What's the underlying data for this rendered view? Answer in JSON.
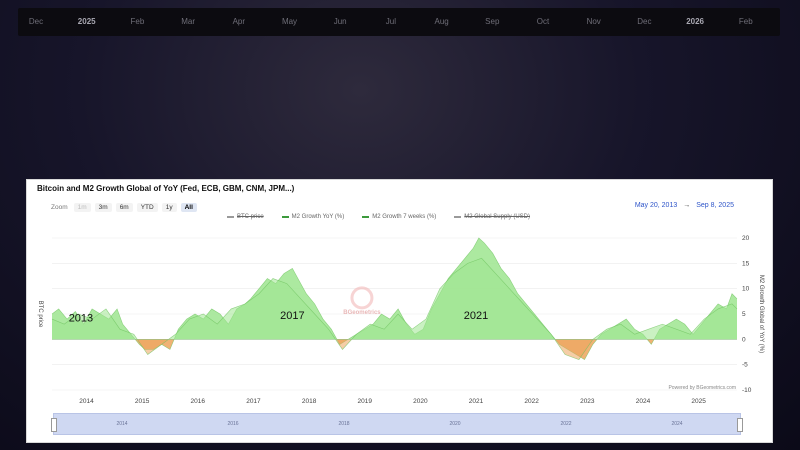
{
  "timeline": {
    "labels": [
      {
        "text": "Dec",
        "year": false
      },
      {
        "text": "2025",
        "year": true
      },
      {
        "text": "Feb",
        "year": false
      },
      {
        "text": "Mar",
        "year": false
      },
      {
        "text": "Apr",
        "year": false
      },
      {
        "text": "May",
        "year": false
      },
      {
        "text": "Jun",
        "year": false
      },
      {
        "text": "Jul",
        "year": false
      },
      {
        "text": "Aug",
        "year": false
      },
      {
        "text": "Sep",
        "year": false
      },
      {
        "text": "Oct",
        "year": false
      },
      {
        "text": "Nov",
        "year": false
      },
      {
        "text": "Dec",
        "year": false
      },
      {
        "text": "2026",
        "year": true
      },
      {
        "text": "Feb",
        "year": false
      }
    ]
  },
  "chart": {
    "title": "Bitcoin and M2 Growth Global of YoY (Fed, ECB, GBM, CNM, JPM...)",
    "zoom_label": "Zoom",
    "zoom_buttons": [
      {
        "label": "1m",
        "state": "disabled"
      },
      {
        "label": "3m",
        "state": "normal"
      },
      {
        "label": "6m",
        "state": "normal"
      },
      {
        "label": "YTD",
        "state": "normal"
      },
      {
        "label": "1y",
        "state": "normal"
      },
      {
        "label": "All",
        "state": "active"
      }
    ],
    "range_start": "May 20, 2013",
    "range_arrow": "→",
    "range_end": "Sep 8, 2025",
    "legend": [
      {
        "label": "BTC price",
        "color": "#9a9a9a",
        "struck": true
      },
      {
        "label": "M2 Growth YoY (%)",
        "color": "#3c9a3c",
        "struck": false
      },
      {
        "label": "M2 Growth 7 weeks (%)",
        "color": "#3c9a3c",
        "struck": false
      },
      {
        "label": "M2 Global Supply (USD)",
        "color": "#9a9a9a",
        "struck": true
      }
    ],
    "left_axis_label": "BTC price",
    "right_axis_label": "M2 Growth Global of YoY (%)",
    "credits": "Powered by BGeometrics.com",
    "watermark": "BGeometrics",
    "cycle_annotations": [
      {
        "text": "2013",
        "x": 2013.9,
        "y": 3.5
      },
      {
        "text": "2017",
        "x": 2017.7,
        "y": 4.0
      },
      {
        "text": "2021",
        "x": 2021.0,
        "y": 4.0
      }
    ],
    "navigator_labels": [
      "2014",
      "2016",
      "2018",
      "2020",
      "2022",
      "2024"
    ],
    "colors": {
      "positive": "#9ee58f",
      "positive_dark": "#6cc25d",
      "negative": "#eda45c",
      "grid": "#e9e9e9"
    }
  },
  "chart_data": {
    "type": "area",
    "title": "Bitcoin and M2 Growth Global of YoY (Fed, ECB, GBM, CNM, JPM...)",
    "xlabel": "",
    "ylabel": "M2 Growth Global of YoY (%)",
    "xlim": [
      2013.38,
      2025.69
    ],
    "ylim": [
      -10,
      20
    ],
    "y_ticks": [
      -10,
      -5,
      0,
      5,
      10,
      15,
      20
    ],
    "x_ticks": [
      2014,
      2015,
      2016,
      2017,
      2018,
      2019,
      2020,
      2021,
      2022,
      2023,
      2024,
      2025
    ],
    "grid": true,
    "legend_position": "top",
    "series": [
      {
        "name": "M2 Growth YoY (%)",
        "x": [
          2013.38,
          2013.5,
          2013.65,
          2013.8,
          2013.95,
          2014.1,
          2014.25,
          2014.4,
          2014.55,
          2014.65,
          2014.8,
          2014.95,
          2015.05,
          2015.2,
          2015.35,
          2015.5,
          2015.65,
          2015.8,
          2015.95,
          2016.1,
          2016.25,
          2016.4,
          2016.55,
          2016.7,
          2016.85,
          2016.95,
          2017.1,
          2017.25,
          2017.4,
          2017.55,
          2017.7,
          2017.85,
          2017.95,
          2018.1,
          2018.25,
          2018.4,
          2018.55,
          2018.7,
          2018.85,
          2019.0,
          2019.15,
          2019.3,
          2019.45,
          2019.6,
          2019.75,
          2019.9,
          2020.05,
          2020.2,
          2020.35,
          2020.5,
          2020.65,
          2020.8,
          2020.95,
          2021.05,
          2021.15,
          2021.3,
          2021.45,
          2021.6,
          2021.75,
          2021.9,
          2022.05,
          2022.2,
          2022.35,
          2022.5,
          2022.65,
          2022.8,
          2022.95,
          2023.1,
          2023.25,
          2023.4,
          2023.55,
          2023.7,
          2023.85,
          2024.0,
          2024.15,
          2024.3,
          2024.45,
          2024.6,
          2024.75,
          2024.9,
          2025.05,
          2025.2,
          2025.35,
          2025.5,
          2025.6,
          2025.69
        ],
        "values": [
          5,
          6,
          4,
          5.5,
          3,
          6,
          5,
          4,
          6,
          3,
          1,
          -1,
          -2,
          -2,
          -1,
          -2,
          2,
          4,
          5,
          4,
          6,
          5,
          3,
          6,
          7,
          8,
          10,
          12,
          11,
          13,
          14,
          11,
          9,
          7,
          4,
          2,
          -1,
          0,
          1,
          2,
          3,
          5,
          4,
          6,
          3,
          1,
          2,
          6,
          9,
          12,
          14,
          16,
          18,
          20,
          19,
          17,
          14,
          12,
          9,
          7,
          5,
          3,
          1,
          -1,
          -2,
          -3,
          -4,
          -1,
          1,
          2,
          3,
          4,
          2,
          1,
          -1,
          2,
          3,
          4,
          3,
          1,
          3,
          5,
          7,
          6,
          9,
          8
        ]
      },
      {
        "name": "M2 Growth 7 weeks (%)",
        "x": [
          2013.38,
          2013.6,
          2013.85,
          2014.1,
          2014.35,
          2014.6,
          2014.85,
          2015.1,
          2015.35,
          2015.6,
          2015.85,
          2016.1,
          2016.35,
          2016.6,
          2016.85,
          2017.1,
          2017.35,
          2017.6,
          2017.85,
          2018.1,
          2018.35,
          2018.6,
          2018.85,
          2019.1,
          2019.35,
          2019.6,
          2019.85,
          2020.1,
          2020.35,
          2020.6,
          2020.85,
          2021.1,
          2021.35,
          2021.6,
          2021.85,
          2022.1,
          2022.35,
          2022.6,
          2022.85,
          2023.1,
          2023.35,
          2023.6,
          2023.85,
          2024.1,
          2024.35,
          2024.6,
          2024.85,
          2025.1,
          2025.35,
          2025.6,
          2025.69
        ],
        "values": [
          4,
          3,
          5,
          4,
          6,
          2,
          1,
          -3,
          -1,
          1,
          4,
          5,
          3,
          6,
          7,
          9,
          12,
          11,
          8,
          5,
          2,
          -2,
          1,
          3,
          2,
          5,
          2,
          4,
          10,
          13,
          15,
          16,
          13,
          10,
          7,
          4,
          1,
          -3,
          -4,
          0,
          2,
          3,
          1,
          2,
          3,
          2,
          1,
          4,
          6,
          7,
          6
        ]
      }
    ]
  }
}
